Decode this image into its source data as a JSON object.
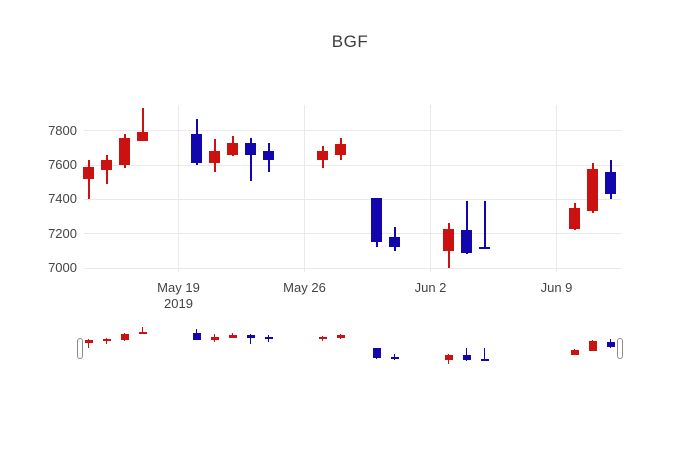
{
  "title": "BGF",
  "colors": {
    "increasing": "#cc1111",
    "decreasing": "#1107ad",
    "grid": "#e9e9e9",
    "axis_text": "#444444",
    "title_text": "#3d3d3d",
    "background": "#ffffff",
    "slider_handle_border": "#8c8c8c"
  },
  "chart_data": {
    "type": "candlestick",
    "title": "BGF",
    "xlabel": "",
    "ylabel": "",
    "legend": "none",
    "grid": true,
    "rangeslider": true,
    "y_range": [
      6977,
      7950
    ],
    "y_ticks": [
      7000,
      7200,
      7400,
      7600,
      7800
    ],
    "x_ticks": [
      {
        "date": "2019-05-19",
        "label": "May 19",
        "sublabel": "2019"
      },
      {
        "date": "2019-05-26",
        "label": "May 26",
        "sublabel": ""
      },
      {
        "date": "2019-06-02",
        "label": "Jun 2",
        "sublabel": ""
      },
      {
        "date": "2019-06-09",
        "label": "Jun 9",
        "sublabel": ""
      }
    ],
    "candles": [
      {
        "date": "2019-05-14",
        "open": 7520,
        "high": 7630,
        "low": 7400,
        "close": 7590
      },
      {
        "date": "2019-05-15",
        "open": 7570,
        "high": 7660,
        "low": 7490,
        "close": 7630
      },
      {
        "date": "2019-05-16",
        "open": 7600,
        "high": 7780,
        "low": 7580,
        "close": 7760
      },
      {
        "date": "2019-05-17",
        "open": 7740,
        "high": 7930,
        "low": 7740,
        "close": 7790
      },
      {
        "date": "2019-05-20",
        "open": 7780,
        "high": 7870,
        "low": 7600,
        "close": 7610
      },
      {
        "date": "2019-05-21",
        "open": 7610,
        "high": 7750,
        "low": 7560,
        "close": 7680
      },
      {
        "date": "2019-05-22",
        "open": 7660,
        "high": 7770,
        "low": 7650,
        "close": 7730
      },
      {
        "date": "2019-05-23",
        "open": 7730,
        "high": 7760,
        "low": 7510,
        "close": 7660
      },
      {
        "date": "2019-05-24",
        "open": 7680,
        "high": 7730,
        "low": 7560,
        "close": 7630
      },
      {
        "date": "2019-05-27",
        "open": 7630,
        "high": 7710,
        "low": 7580,
        "close": 7680
      },
      {
        "date": "2019-05-28",
        "open": 7660,
        "high": 7760,
        "low": 7630,
        "close": 7720
      },
      {
        "date": "2019-05-30",
        "open": 7410,
        "high": 7410,
        "low": 7120,
        "close": 7150
      },
      {
        "date": "2019-05-31",
        "open": 7180,
        "high": 7240,
        "low": 7100,
        "close": 7120
      },
      {
        "date": "2019-06-03",
        "open": 7100,
        "high": 7260,
        "low": 7000,
        "close": 7230
      },
      {
        "date": "2019-06-04",
        "open": 7220,
        "high": 7390,
        "low": 7080,
        "close": 7090
      },
      {
        "date": "2019-06-05",
        "open": 7120,
        "high": 7390,
        "low": 7110,
        "close": 7110
      },
      {
        "date": "2019-06-10",
        "open": 7230,
        "high": 7380,
        "low": 7220,
        "close": 7350
      },
      {
        "date": "2019-06-11",
        "open": 7330,
        "high": 7610,
        "low": 7320,
        "close": 7580
      },
      {
        "date": "2019-06-12",
        "open": 7560,
        "high": 7630,
        "low": 7400,
        "close": 7430
      }
    ]
  }
}
